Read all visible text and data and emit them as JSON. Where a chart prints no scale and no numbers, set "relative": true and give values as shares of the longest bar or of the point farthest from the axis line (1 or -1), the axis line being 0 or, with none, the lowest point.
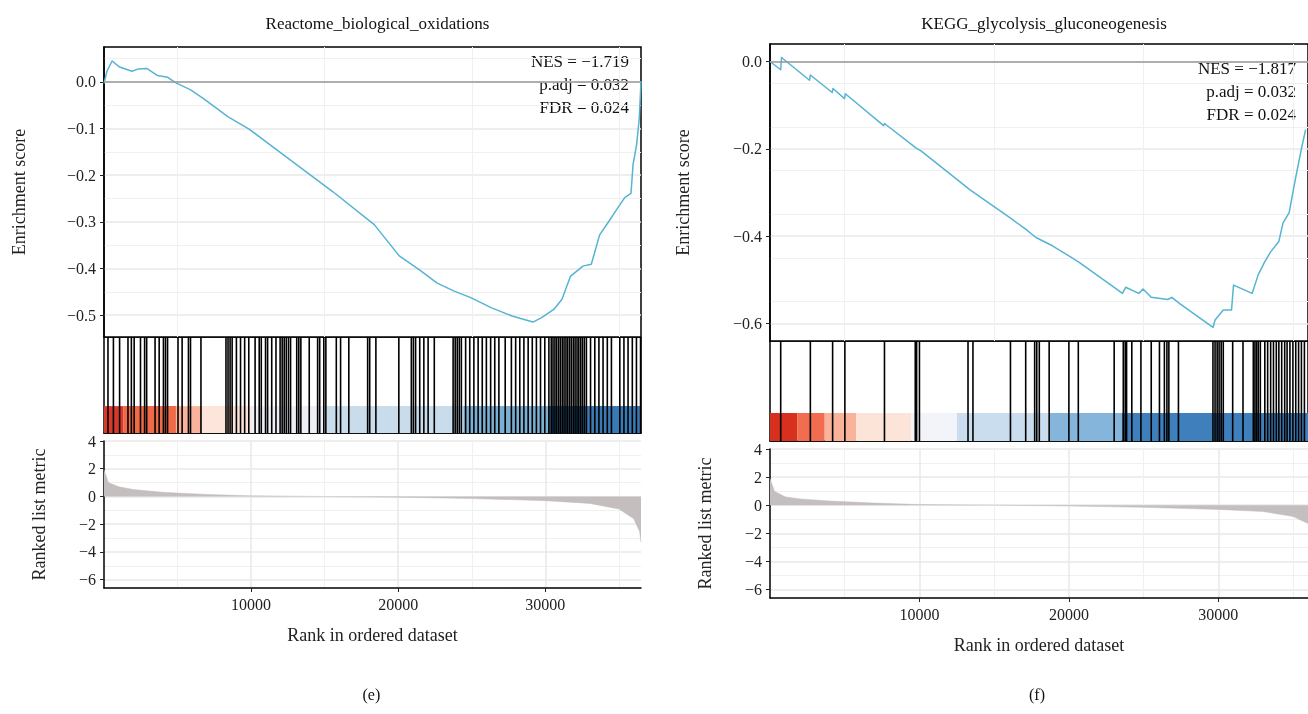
{
  "chart_data": [
    {
      "type": "line",
      "title": "Reactome_biological_oxidations",
      "ylabel": "Enrichment score",
      "xlim": [
        0,
        36500
      ],
      "ylim": [
        -0.547,
        0.075
      ],
      "yticks": [
        {
          "value": 0,
          "label": "0.0"
        },
        {
          "value": -0.1,
          "label": "−0.1"
        },
        {
          "value": -0.2,
          "label": "−0.2"
        },
        {
          "value": -0.3,
          "label": "−0.3"
        },
        {
          "value": -0.4,
          "label": "−0.4"
        },
        {
          "value": -0.5,
          "label": "−0.5"
        }
      ],
      "tick_labels": "y",
      "grid": true,
      "marker": "none",
      "annotations": [
        "NES = −1.719",
        "p.adj = 0.032",
        "FDR = 0.024"
      ],
      "ref_lines": [
        {
          "axis": "y",
          "value": 0,
          "color": "#999999"
        }
      ],
      "series": [
        {
          "color": "#56b4d3",
          "x": [
            0,
            200,
            550,
            1060,
            1900,
            2340,
            2900,
            3620,
            4330,
            4890,
            5890,
            6740,
            8440,
            9860,
            12700,
            15540,
            18370,
            20070,
            21490,
            22620,
            23760,
            24890,
            26310,
            27730,
            29150,
            29720,
            30570,
            31130,
            31700,
            32550,
            33120,
            33690,
            34250,
            34820,
            35390,
            35820,
            35960,
            36190,
            36380,
            36500
          ],
          "values": [
            -0.003,
            0.023,
            0.045,
            0.032,
            0.023,
            0.028,
            0.029,
            0.014,
            0.01,
            -0.002,
            -0.017,
            -0.035,
            -0.075,
            -0.101,
            -0.168,
            -0.235,
            -0.306,
            -0.373,
            -0.404,
            -0.431,
            -0.448,
            -0.462,
            -0.484,
            -0.502,
            -0.515,
            -0.506,
            -0.488,
            -0.466,
            -0.417,
            -0.395,
            -0.391,
            -0.328,
            -0.302,
            -0.275,
            -0.248,
            -0.239,
            -0.177,
            -0.137,
            -0.079,
            0.001
          ]
        }
      ]
    },
    {
      "type": "bar",
      "relative": true,
      "tick_labels": false,
      "xlim": [
        0,
        36500
      ],
      "color": "#000000",
      "x": [
        270,
        640,
        1060,
        1630,
        1860,
        2050,
        2480,
        2760,
        2900,
        3470,
        3750,
        4040,
        4180,
        4320,
        5030,
        5310,
        5740,
        5880,
        6590,
        8290,
        8430,
        8570,
        8710,
        9000,
        9280,
        9560,
        9840,
        10270,
        10550,
        10690,
        10980,
        11120,
        11400,
        11690,
        11970,
        12110,
        12250,
        12390,
        12540,
        12680,
        13100,
        13240,
        13380,
        13950,
        14520,
        14660,
        14940,
        15080,
        15790,
        16080,
        16640,
        17920,
        18060,
        18480,
        20040,
        20890,
        21030,
        21180,
        21460,
        21740,
        22030,
        22450,
        23730,
        23870,
        24010,
        24150,
        24290,
        24580,
        24860,
        25140,
        25430,
        25710,
        25990,
        26280,
        26560,
        26840,
        27270,
        27690,
        27980,
        28260,
        28540,
        28830,
        29110,
        29390,
        29670,
        29960,
        30240,
        30400,
        30520,
        30650,
        30770,
        30900,
        31020,
        31150,
        31270,
        31400,
        31520,
        31650,
        31770,
        31900,
        32020,
        32150,
        32270,
        32400,
        32520,
        32650,
        32790,
        33070,
        33360,
        33640,
        33920,
        34210,
        34490,
        35060,
        35340,
        35620,
        35910,
        36190,
        36470
      ],
      "values": [
        1,
        1,
        1,
        1,
        1,
        1,
        1,
        1,
        1,
        1,
        1,
        1,
        1,
        1,
        1,
        1,
        1,
        1,
        1,
        1,
        1,
        1,
        1,
        1,
        1,
        1,
        1,
        1,
        1,
        1,
        1,
        1,
        1,
        1,
        1,
        1,
        1,
        1,
        1,
        1,
        1,
        1,
        1,
        1,
        1,
        1,
        1,
        1,
        1,
        1,
        1,
        1,
        1,
        1,
        1,
        1,
        1,
        1,
        1,
        1,
        1,
        1,
        1,
        1,
        1,
        1,
        1,
        1,
        1,
        1,
        1,
        1,
        1,
        1,
        1,
        1,
        1,
        1,
        1,
        1,
        1,
        1,
        1,
        1,
        1,
        1,
        1,
        1,
        1,
        1,
        1,
        1,
        1,
        1,
        1,
        1,
        1,
        1,
        1,
        1,
        1,
        1,
        1,
        1,
        1,
        1,
        1,
        1,
        1,
        1,
        1,
        1,
        1,
        1,
        1,
        1,
        1,
        1,
        1
      ],
      "bands": [
        {
          "axis": "x",
          "from": 0,
          "to": 1300,
          "color": "#d73a2c"
        },
        {
          "axis": "x",
          "from": 1300,
          "to": 4890,
          "color": "#ef6a47"
        },
        {
          "axis": "x",
          "from": 4890,
          "to": 6650,
          "color": "#f9b39c"
        },
        {
          "axis": "x",
          "from": 6650,
          "to": 9990,
          "color": "#fde5dc"
        },
        {
          "axis": "x",
          "from": 9990,
          "to": 15140,
          "color": "#eeeef7"
        },
        {
          "axis": "x",
          "from": 15140,
          "to": 24430,
          "color": "#c8dcec"
        },
        {
          "axis": "x",
          "from": 24430,
          "to": 30180,
          "color": "#7bafd4"
        },
        {
          "axis": "x",
          "from": 30180,
          "to": 36500,
          "color": "#3a7ab5"
        }
      ]
    },
    {
      "type": "area",
      "ylabel": "Ranked list metric",
      "xlabel": "Rank in ordered dataset",
      "xlim": [
        0,
        36500
      ],
      "xticks": [
        10000,
        20000,
        30000
      ],
      "ylim": [
        -6.6,
        4
      ],
      "yticks": [
        4,
        2,
        0,
        {
          "value": -2,
          "label": "−2"
        },
        {
          "value": -4,
          "label": "−4"
        },
        {
          "value": -6,
          "label": "−6"
        }
      ],
      "grid": true,
      "annotations": [
        "(e)"
      ],
      "series": [
        {
          "color": "#c4bebe",
          "x": [
            0,
            300,
            1000,
            2000,
            4000,
            7000,
            10000,
            15000,
            20000,
            25000,
            30000,
            33000,
            35000,
            36000,
            36400,
            36500
          ],
          "values": [
            1.9,
            1.0,
            0.7,
            0.5,
            0.3,
            0.15,
            0.05,
            0,
            -0.05,
            -0.15,
            -0.3,
            -0.5,
            -0.9,
            -1.6,
            -2.5,
            -3.3
          ]
        }
      ]
    },
    {
      "type": "line",
      "title": "KEGG_glycolysis_gluconeogenesis",
      "ylabel": "Enrichment score",
      "xlim": [
        0,
        36000
      ],
      "ylim": [
        -0.64,
        0.04
      ],
      "yticks": [
        {
          "value": 0,
          "label": "0.0"
        },
        {
          "value": -0.2,
          "label": "−0.2"
        },
        {
          "value": -0.4,
          "label": "−0.4"
        },
        {
          "value": -0.6,
          "label": "−0.6"
        }
      ],
      "tick_labels": "y",
      "grid": true,
      "marker": "none",
      "annotations": [
        "NES = −1.817",
        "p.adj = 0.032",
        "FDR = 0.024"
      ],
      "ref_lines": [
        {
          "axis": "y",
          "value": 0,
          "color": "#999999"
        }
      ],
      "series": [
        {
          "color": "#56b4d3",
          "x": [
            0,
            716,
            771,
            2645,
            2700,
            4160,
            4215,
            4986,
            5041,
            7603,
            7658,
            9807,
            10083,
            13388,
            16143,
            17107,
            17796,
            18898,
            20000,
            20689,
            23030,
            23581,
            23802,
            24683,
            24959,
            25510,
            26612,
            26887,
            27438,
            29642,
            29780,
            30331,
            30882,
            31019,
            32259,
            32672,
            33085,
            33498,
            34049,
            34325,
            34738,
            35152,
            35565,
            35840
          ],
          "values": [
            0,
            -0.019,
            0.009,
            -0.043,
            -0.031,
            -0.071,
            -0.062,
            -0.085,
            -0.074,
            -0.147,
            -0.142,
            -0.199,
            -0.204,
            -0.294,
            -0.36,
            -0.384,
            -0.403,
            -0.422,
            -0.445,
            -0.46,
            -0.517,
            -0.531,
            -0.517,
            -0.531,
            -0.521,
            -0.54,
            -0.545,
            -0.54,
            -0.555,
            -0.609,
            -0.592,
            -0.569,
            -0.569,
            -0.512,
            -0.531,
            -0.488,
            -0.46,
            -0.436,
            -0.412,
            -0.37,
            -0.346,
            -0.27,
            -0.199,
            -0.156
          ]
        }
      ]
    },
    {
      "type": "bar",
      "relative": true,
      "tick_labels": false,
      "xlim": [
        0,
        36000
      ],
      "color": "#000000",
      "x": [
        716,
        2700,
        4190,
        5010,
        7660,
        9720,
        9810,
        10000,
        13250,
        13580,
        16090,
        17110,
        17710,
        17850,
        18020,
        18680,
        20000,
        20630,
        23030,
        23640,
        23770,
        23860,
        24210,
        24820,
        25510,
        26060,
        26390,
        26560,
        26690,
        27330,
        29640,
        29780,
        29920,
        30050,
        30190,
        30330,
        30960,
        31650,
        32340,
        32450,
        32560,
        32670,
        32810,
        33110,
        33300,
        33500,
        33690,
        33880,
        34050,
        34240,
        34440,
        34600,
        34790,
        34990,
        35180,
        35370,
        35560,
        35760
      ],
      "values": [
        1,
        1,
        1,
        1,
        1,
        1,
        1,
        1,
        1,
        1,
        1,
        1,
        1,
        1,
        1,
        1,
        1,
        1,
        1,
        1,
        1,
        1,
        1,
        1,
        1,
        1,
        1,
        1,
        1,
        1,
        1,
        1,
        1,
        1,
        1,
        1,
        1,
        1,
        1,
        1,
        1,
        1,
        1,
        1,
        1,
        1,
        1,
        1,
        1,
        1,
        1,
        1,
        1,
        1,
        1,
        1,
        1,
        1
      ],
      "bands": [
        {
          "axis": "x",
          "from": 0,
          "to": 1820,
          "color": "#d7301f"
        },
        {
          "axis": "x",
          "from": 1820,
          "to": 3660,
          "color": "#f26c4f"
        },
        {
          "axis": "x",
          "from": 3660,
          "to": 5760,
          "color": "#f8b39a"
        },
        {
          "axis": "x",
          "from": 5760,
          "to": 9450,
          "color": "#fde4d9"
        },
        {
          "axis": "x",
          "from": 9450,
          "to": 12510,
          "color": "#f3f3fa"
        },
        {
          "axis": "x",
          "from": 12510,
          "to": 18710,
          "color": "#c9ddee"
        },
        {
          "axis": "x",
          "from": 18710,
          "to": 23530,
          "color": "#85b5da"
        },
        {
          "axis": "x",
          "from": 23530,
          "to": 36000,
          "color": "#3f7fbc"
        }
      ]
    },
    {
      "type": "area",
      "ylabel": "Ranked list metric",
      "xlabel": "Rank in ordered dataset",
      "xlim": [
        0,
        36000
      ],
      "xticks": [
        10000,
        20000,
        30000
      ],
      "ylim": [
        -6.6,
        4
      ],
      "yticks": [
        4,
        2,
        0,
        {
          "value": -2,
          "label": "−2"
        },
        {
          "value": -4,
          "label": "−4"
        },
        {
          "value": -6,
          "label": "−6"
        }
      ],
      "grid": true,
      "annotations": [
        "(f)"
      ],
      "series": [
        {
          "color": "#c4bebe",
          "x": [
            0,
            300,
            1000,
            2000,
            4000,
            7000,
            10000,
            15000,
            20000,
            25000,
            30000,
            33000,
            35000,
            36000
          ],
          "values": [
            1.9,
            1.0,
            0.6,
            0.45,
            0.3,
            0.15,
            0.05,
            0,
            -0.05,
            -0.15,
            -0.3,
            -0.45,
            -0.8,
            -1.3
          ]
        }
      ]
    }
  ]
}
